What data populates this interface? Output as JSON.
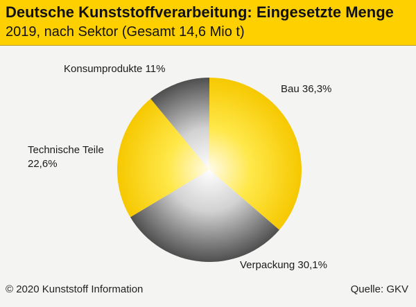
{
  "header": {
    "title": "Deutsche Kunststoffverarbeitung: Eingesetzte Menge",
    "subtitle": "2019, nach Sektor (Gesamt 14,6 Mio t)"
  },
  "footer": {
    "copyright": "© 2020 Kunststoff Information",
    "source": "Quelle: GKV"
  },
  "colors": {
    "header_bg": "#ffd000",
    "background": "#f4f4f3",
    "yellow_slice": "#ffd400",
    "gray_slice": "#9b9b9b"
  },
  "chart_data": {
    "type": "pie",
    "title": "Deutsche Kunststoffverarbeitung: Eingesetzte Menge",
    "subtitle": "2019, nach Sektor (Gesamt 14,6 Mio t)",
    "start_angle_deg": 0,
    "direction": "clockwise",
    "slices": [
      {
        "label": "Bau 36,3%",
        "value": 36.3,
        "color": "yellow"
      },
      {
        "label": "Verpackung 30,1%",
        "value": 30.1,
        "color": "gray"
      },
      {
        "label": [
          "Technische Teile",
          "22,6%"
        ],
        "value": 22.6,
        "color": "yellow"
      },
      {
        "label": "Konsumprodukte 11%",
        "value": 11.0,
        "color": "gray"
      }
    ]
  }
}
